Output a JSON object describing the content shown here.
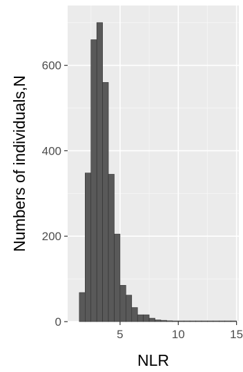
{
  "chart_data": {
    "type": "histogram",
    "xlabel": "NLR",
    "ylabel": "Numbers of individuals,N",
    "xlim": [
      0.5,
      15.2
    ],
    "ylim": [
      0,
      740
    ],
    "x_ticks": [
      5,
      10,
      15
    ],
    "y_ticks": [
      0,
      200,
      400,
      600
    ],
    "grid": true,
    "bin_width": 0.5,
    "bins": [
      {
        "start": 1.5,
        "count": 68
      },
      {
        "start": 2.0,
        "count": 348
      },
      {
        "start": 2.5,
        "count": 660
      },
      {
        "start": 3.0,
        "count": 700
      },
      {
        "start": 3.5,
        "count": 560
      },
      {
        "start": 4.0,
        "count": 345
      },
      {
        "start": 4.5,
        "count": 205
      },
      {
        "start": 5.0,
        "count": 85
      },
      {
        "start": 5.5,
        "count": 62
      },
      {
        "start": 6.0,
        "count": 33
      },
      {
        "start": 6.5,
        "count": 16
      },
      {
        "start": 7.0,
        "count": 16
      },
      {
        "start": 7.5,
        "count": 8
      },
      {
        "start": 8.0,
        "count": 4
      },
      {
        "start": 8.5,
        "count": 3
      },
      {
        "start": 9.0,
        "count": 2
      },
      {
        "start": 9.5,
        "count": 1
      },
      {
        "start": 10.0,
        "count": 1
      },
      {
        "start": 10.5,
        "count": 1
      },
      {
        "start": 11.0,
        "count": 1
      },
      {
        "start": 11.5,
        "count": 0
      },
      {
        "start": 12.0,
        "count": 1
      },
      {
        "start": 12.5,
        "count": 0
      },
      {
        "start": 13.0,
        "count": 0
      },
      {
        "start": 13.5,
        "count": 1
      },
      {
        "start": 14.0,
        "count": 0
      },
      {
        "start": 14.5,
        "count": 1
      }
    ],
    "colors": {
      "panel": "#ebebeb",
      "grid_major": "#ffffff",
      "grid_minor": "#f5f5f5",
      "bar_fill": "#595959",
      "bar_stroke": "#303030"
    }
  }
}
